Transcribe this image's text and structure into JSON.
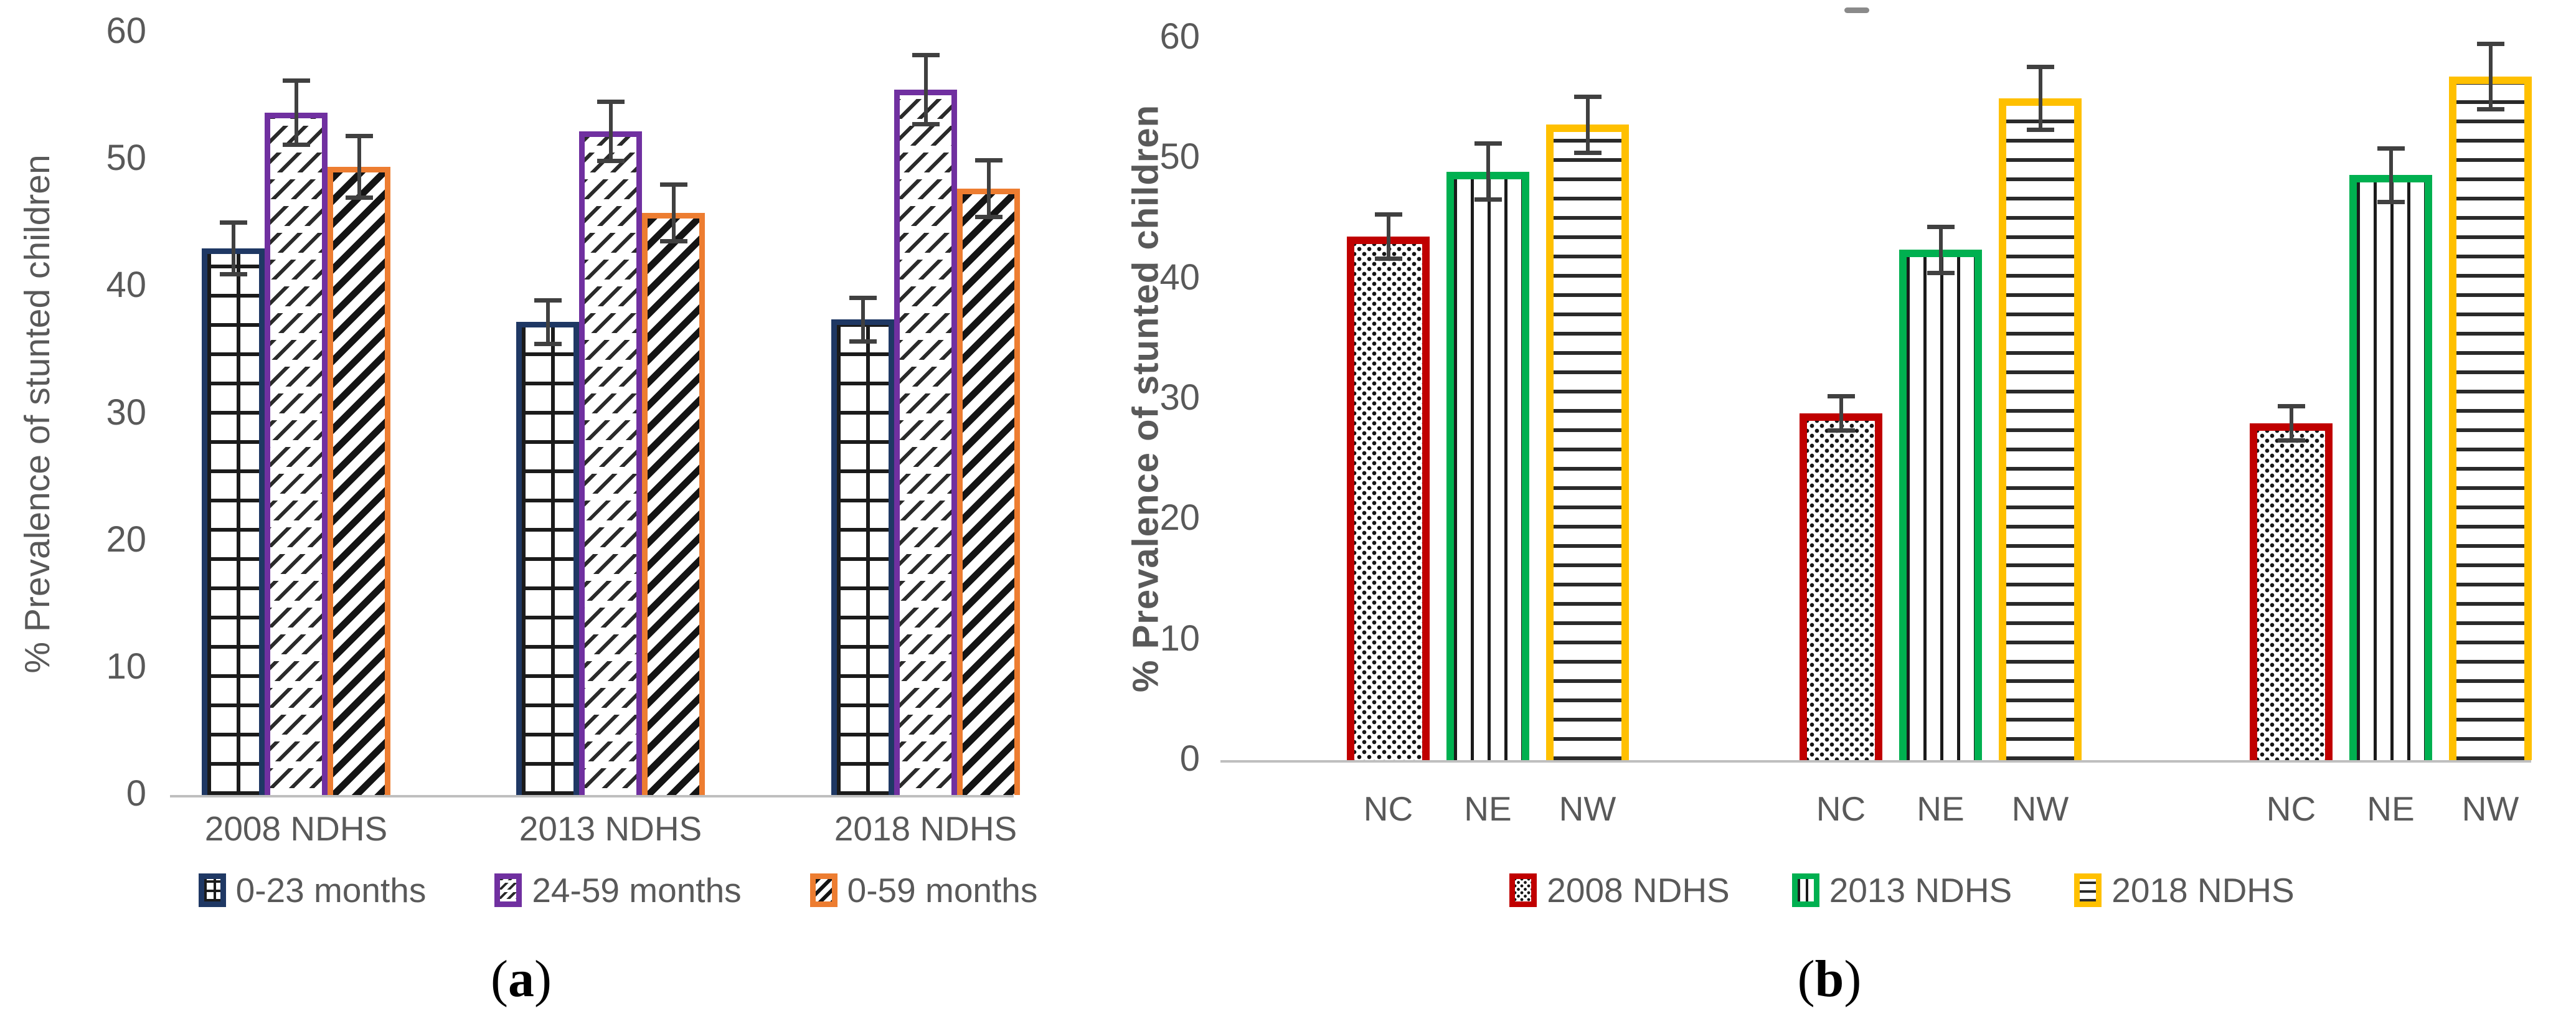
{
  "figure": {
    "captions": [
      {
        "open": "(",
        "letter": "a",
        "close": ")"
      },
      {
        "open": "(",
        "letter": "b",
        "close": ")"
      }
    ],
    "text_color": "#595959",
    "axis_line_color": "#bfbfbf",
    "error_bar_color": "#404040"
  },
  "chart_data": [
    {
      "panel": "a",
      "type": "bar",
      "title": "",
      "xlabel": "",
      "ylabel": "% Prevalence of stunted children",
      "ylim": [
        0,
        60
      ],
      "yticks": [
        0,
        10,
        20,
        30,
        40,
        50,
        60
      ],
      "grid": false,
      "legend_position": "bottom",
      "categories": [
        "2008 NDHS",
        "2013 NDHS",
        "2018 NDHS"
      ],
      "series": [
        {
          "name": "0-23 months",
          "border_color": "#1F3864",
          "pattern": "grid",
          "values": [
            43.0,
            37.2,
            37.4
          ],
          "errors": [
            2.2,
            1.9,
            1.9
          ]
        },
        {
          "name": "24-59 months",
          "border_color": "#7030A0",
          "pattern": "diag-dash",
          "values": [
            53.7,
            52.2,
            55.5
          ],
          "errors": [
            2.7,
            2.5,
            2.9
          ]
        },
        {
          "name": "0-59 months",
          "border_color": "#ED7D31",
          "pattern": "diag-bold",
          "values": [
            49.4,
            45.8,
            47.7
          ],
          "errors": [
            2.6,
            2.4,
            2.4
          ]
        }
      ]
    },
    {
      "panel": "b",
      "type": "bar",
      "title": "",
      "xlabel": "",
      "ylabel": "% Prevalence of stunted children",
      "ylim": [
        0,
        60
      ],
      "yticks": [
        0,
        10,
        20,
        30,
        40,
        50,
        60
      ],
      "grid": false,
      "legend_position": "bottom",
      "legend": [
        {
          "label": "2008 NDHS",
          "color": "#C00000",
          "pattern": "dots"
        },
        {
          "label": "2013 NDHS",
          "color": "#00B050",
          "pattern": "vlines"
        },
        {
          "label": "2018 NDHS",
          "color": "#FFC000",
          "pattern": "hlines"
        }
      ],
      "groups": [
        {
          "bars": [
            {
              "label": "NC",
              "value": 43.5,
              "error": 2.0,
              "color": "#C00000",
              "pattern": "dots"
            },
            {
              "label": "NE",
              "value": 48.9,
              "error": 2.5,
              "color": "#00B050",
              "pattern": "vlines"
            },
            {
              "label": "NW",
              "value": 52.8,
              "error": 2.5,
              "color": "#FFC000",
              "pattern": "hlines"
            }
          ]
        },
        {
          "bars": [
            {
              "label": "NC",
              "value": 28.8,
              "error": 1.6,
              "color": "#C00000",
              "pattern": "dots"
            },
            {
              "label": "NE",
              "value": 42.4,
              "error": 2.1,
              "color": "#00B050",
              "pattern": "vlines"
            },
            {
              "label": "NW",
              "value": 55.0,
              "error": 2.8,
              "color": "#FFC000",
              "pattern": "hlines"
            }
          ]
        },
        {
          "bars": [
            {
              "label": "NC",
              "value": 28.0,
              "error": 1.6,
              "color": "#C00000",
              "pattern": "dots"
            },
            {
              "label": "NE",
              "value": 48.6,
              "error": 2.4,
              "color": "#00B050",
              "pattern": "vlines"
            },
            {
              "label": "NW",
              "value": 56.8,
              "error": 2.9,
              "color": "#FFC000",
              "pattern": "hlines"
            }
          ]
        }
      ]
    }
  ]
}
